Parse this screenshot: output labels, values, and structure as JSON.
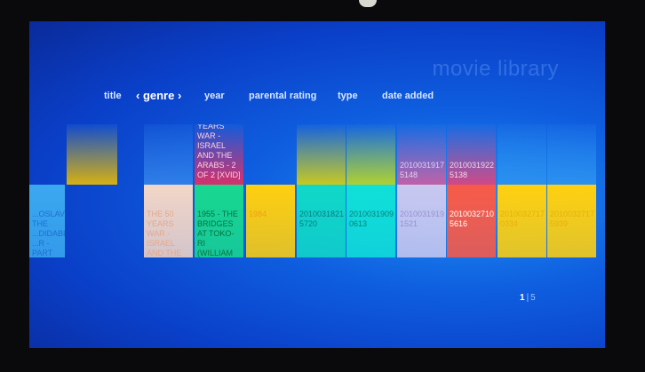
{
  "header": {
    "title": "movie library"
  },
  "nav": [
    {
      "label": "title",
      "active": false
    },
    {
      "label": "‹ genre ›",
      "active": true
    },
    {
      "label": "year",
      "active": false
    },
    {
      "label": "parental rating",
      "active": false
    },
    {
      "label": "type",
      "active": false
    },
    {
      "label": "date added",
      "active": false
    }
  ],
  "columns": [
    {
      "top": null,
      "bottom": {
        "text": "...OSLAVI THE ...DIDABLE ...R - PART ...IVX",
        "color": "#3aa8f0",
        "text_color": "#1e6fd0"
      }
    },
    {
      "top": {
        "text": "",
        "color": "#d8b010",
        "text_color": "#c9a010"
      },
      "bottom": null
    },
    {
      "top": {
        "text": "",
        "color": "#2f7ee8",
        "text_color": "#4a8ae0"
      },
      "bottom": {
        "text": "THE 50 YEARS WAR - ISRAEL AND THE ARABS - 1 OF 2 [XVID]",
        "color": "#f2d6c8",
        "text_color": "#e6a888"
      }
    },
    {
      "top": {
        "text": "YEARS WAR - ISRAEL AND THE ARABS - 2 OF 2 [XVID]",
        "color": "#d8306a",
        "text_color": "#ffd0e0"
      },
      "bottom": {
        "text": "1955 - THE BRIDGES AT TOKO-RI (WILLIAM HOLDEN, GRACE KELLY",
        "color": "#18d890",
        "text_color": "#0a7040"
      }
    },
    {
      "top": null,
      "bottom": {
        "text": "1984",
        "color": "#ffcf10",
        "text_color": "#f0a010"
      }
    },
    {
      "top": {
        "text": "",
        "color": "#c8c820",
        "text_color": "#a0a020"
      },
      "bottom": {
        "text": "2010031821 5720",
        "color": "#10d8c8",
        "text_color": "#0a7a80"
      }
    },
    {
      "top": {
        "text": "",
        "color": "#b0d030",
        "text_color": "#90b020"
      },
      "bottom": {
        "text": "2010031909 0613",
        "color": "#10e0d8",
        "text_color": "#0a8078"
      }
    },
    {
      "top": {
        "text": "2010031917 5148",
        "color": "#c060a8",
        "text_color": "#e0d0f0"
      },
      "bottom": {
        "text": "2010031919 1521",
        "color": "#c8c8f0",
        "text_color": "#9a90d0"
      }
    },
    {
      "top": {
        "text": "2010031922 5138",
        "color": "#d04888",
        "text_color": "#f0d8e8"
      },
      "bottom": {
        "text": "2010032710 5616",
        "color": "#f85a48",
        "text_color": "#ffffff"
      }
    },
    {
      "top": {
        "text": "",
        "color": "#2a90f0",
        "text_color": "#4a9af0"
      },
      "bottom": {
        "text": "2010032717 0334",
        "color": "#ffd010",
        "text_color": "#e8b010"
      }
    },
    {
      "top": {
        "text": "",
        "color": "#2a90f0",
        "text_color": "#4a9af0"
      },
      "bottom": {
        "text": "2010032717 5939",
        "color": "#ffd010",
        "text_color": "#e8b010"
      }
    }
  ],
  "pager": {
    "current": "1",
    "separator": "|",
    "total": "5"
  }
}
